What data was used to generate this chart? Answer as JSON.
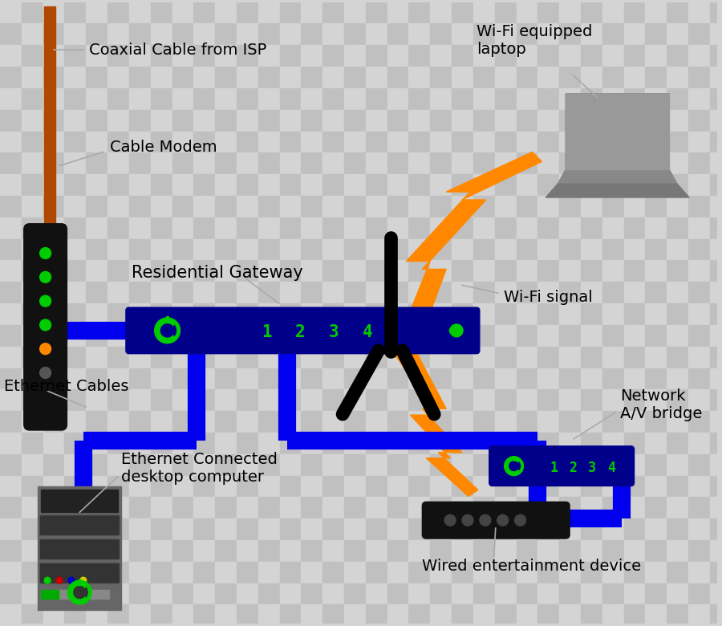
{
  "checker_light": "#d4d4d4",
  "checker_dark": "#c0c0c0",
  "checker_size": 27,
  "colors": {
    "coaxial_cable": "#b04800",
    "modem_body": "#111111",
    "gateway_body": "#00008a",
    "ethernet_blue": "#0000ee",
    "wifi_orange": "#ff8800",
    "laptop_gray": "#888888",
    "laptop_dark": "#555555",
    "laptop_screen": "#aaaaaa",
    "desktop_gray": "#666666",
    "led_green": "#00cc00",
    "led_orange": "#ff8800",
    "av_body": "#00008a",
    "entertainment_body": "#111111",
    "ann_line": "#aaaaaa",
    "text": "#000000"
  },
  "labels": {
    "coaxial": "Coaxial Cable from ISP",
    "modem": "Cable Modem",
    "gateway": "Residential Gateway",
    "eth_cables": "Ethernet Cables",
    "eth_desktop": "Ethernet Connected\ndesktop computer",
    "wifi_laptop": "Wi-Fi equipped\nlaptop",
    "wifi_signal": "Wi-Fi signal",
    "av_bridge": "Network\nA/V bridge",
    "entertainment": "Wired entertainment device"
  }
}
